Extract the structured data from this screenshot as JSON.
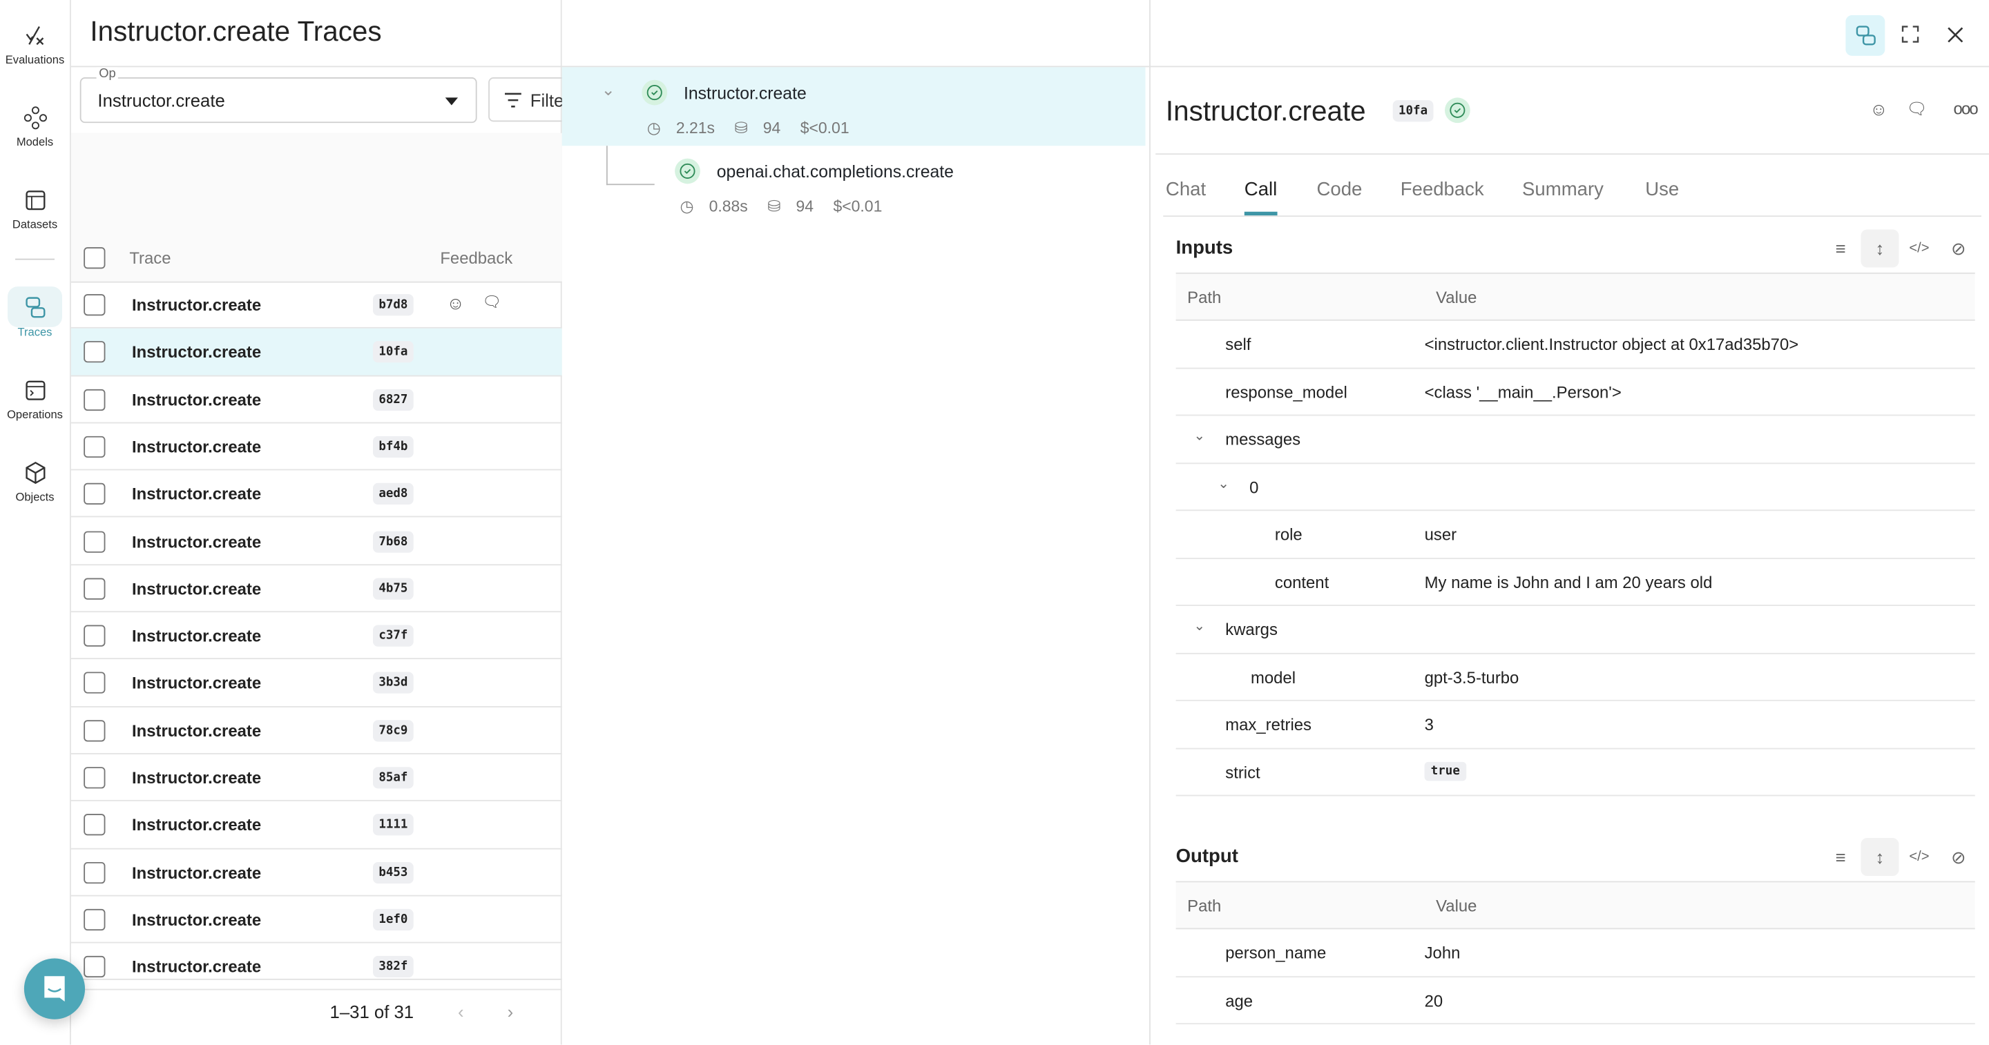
{
  "nav": [
    {
      "label": "Evaluations",
      "icon": "evaluations-icon"
    },
    {
      "label": "Models",
      "icon": "models-icon"
    },
    {
      "label": "Datasets",
      "icon": "datasets-icon"
    },
    {
      "label": "Traces",
      "icon": "traces-icon",
      "active": true
    },
    {
      "label": "Operations",
      "icon": "operations-icon"
    },
    {
      "label": "Objects",
      "icon": "objects-icon"
    }
  ],
  "list": {
    "title": "Instructor.create Traces",
    "op_label": "Op",
    "op_value": "Instructor.create",
    "filter_label": "Filter",
    "col_trace": "Trace",
    "col_feedback": "Feedback",
    "rows": [
      {
        "name": "Instructor.create",
        "id": "b7d8"
      },
      {
        "name": "Instructor.create",
        "id": "10fa",
        "selected": true
      },
      {
        "name": "Instructor.create",
        "id": "6827"
      },
      {
        "name": "Instructor.create",
        "id": "bf4b"
      },
      {
        "name": "Instructor.create",
        "id": "aed8"
      },
      {
        "name": "Instructor.create",
        "id": "7b68"
      },
      {
        "name": "Instructor.create",
        "id": "4b75"
      },
      {
        "name": "Instructor.create",
        "id": "c37f"
      },
      {
        "name": "Instructor.create",
        "id": "3b3d"
      },
      {
        "name": "Instructor.create",
        "id": "78c9"
      },
      {
        "name": "Instructor.create",
        "id": "85af"
      },
      {
        "name": "Instructor.create",
        "id": "1111"
      },
      {
        "name": "Instructor.create",
        "id": "b453"
      },
      {
        "name": "Instructor.create",
        "id": "1ef0"
      },
      {
        "name": "Instructor.create",
        "id": "382f"
      }
    ],
    "pagination": "1–31 of 31"
  },
  "tree": [
    {
      "name": "Instructor.create",
      "latency": "2.21s",
      "tokens": "94",
      "cost": "$<0.01"
    },
    {
      "name": "openai.chat.completions.create",
      "latency": "0.88s",
      "tokens": "94",
      "cost": "$<0.01"
    }
  ],
  "detail": {
    "title": "Instructor.create",
    "id": "10fa",
    "tabs": [
      "Chat",
      "Call",
      "Code",
      "Feedback",
      "Summary",
      "Use"
    ],
    "active_tab": "Call",
    "inputs_label": "Inputs",
    "output_label": "Output",
    "col_path": "Path",
    "col_value": "Value",
    "inputs": [
      {
        "key": "self",
        "value": "<instructor.client.Instructor object at 0x17ad35b70>",
        "level": 0
      },
      {
        "key": "response_model",
        "value": "<class '__main__.Person'>",
        "level": 0
      },
      {
        "key": "messages",
        "value": "",
        "level": 0,
        "expanded": true
      },
      {
        "key": "0",
        "value": "",
        "level": 1,
        "expanded": true
      },
      {
        "key": "role",
        "value": "user",
        "level": 2
      },
      {
        "key": "content",
        "value": "My name is John and I am 20 years old",
        "level": 2
      },
      {
        "key": "kwargs",
        "value": "",
        "level": 0,
        "expanded": true
      },
      {
        "key": "model",
        "value": "gpt-3.5-turbo",
        "level": 1
      },
      {
        "key": "max_retries",
        "value": "3",
        "level": 0
      },
      {
        "key": "strict",
        "value": "true",
        "level": 0,
        "code": true
      }
    ],
    "outputs": [
      {
        "key": "person_name",
        "value": "John",
        "level": 0
      },
      {
        "key": "age",
        "value": "20",
        "level": 0
      }
    ]
  },
  "colors": {
    "accent": "#3d95a6",
    "selected_row": "#e5f7fa",
    "success": "#2e8b57"
  }
}
